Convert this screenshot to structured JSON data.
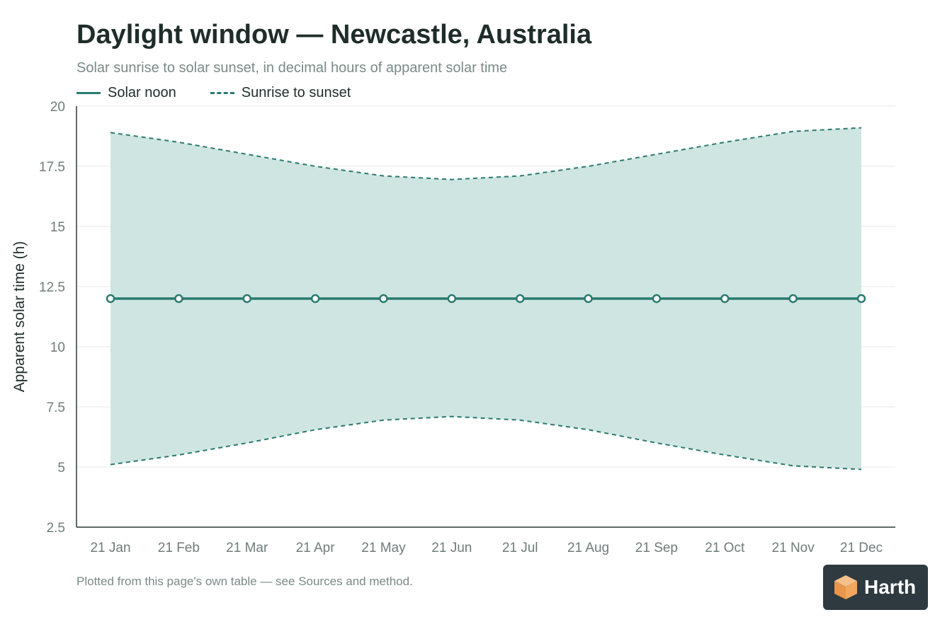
{
  "title": "Daylight window — Newcastle, Australia",
  "subtitle": "Solar sunrise to solar sunset, in decimal hours of apparent solar time",
  "footer": "Plotted from this page's own table — see Sources and method.",
  "logo": {
    "text": "Harth",
    "icon": "cube-icon"
  },
  "colors": {
    "accent": "#2a7a70",
    "band": "#cfe5e1",
    "grid": "#e6ebea",
    "axis": "#2f3a38"
  },
  "chart_data": {
    "type": "line",
    "title": "Daylight window — Newcastle, Australia",
    "subtitle": "Solar sunrise to solar sunset, in decimal hours of apparent solar time",
    "xlabel": "",
    "ylabel": "Apparent solar time (h)",
    "categories": [
      "21 Jan",
      "21 Feb",
      "21 Mar",
      "21 Apr",
      "21 May",
      "21 Jun",
      "21 Jul",
      "21 Aug",
      "21 Sep",
      "21 Oct",
      "21 Nov",
      "21 Dec"
    ],
    "ylim": [
      2.5,
      20
    ],
    "yticks": [
      "2.5",
      "5",
      "7.5",
      "10",
      "12.5",
      "15",
      "17.5",
      "20"
    ],
    "ytick_values": [
      2.5,
      5,
      7.5,
      10,
      12.5,
      15,
      17.5,
      20
    ],
    "grid": true,
    "legend_position": "top-left",
    "series": [
      {
        "name": "Solar noon",
        "style": "solid",
        "values": [
          12,
          12,
          12,
          12,
          12,
          12,
          12,
          12,
          12,
          12,
          12,
          12
        ]
      },
      {
        "name": "Sunrise to sunset",
        "style": "dashed",
        "sunrise": [
          5.1,
          5.5,
          6.0,
          6.55,
          6.95,
          7.1,
          6.95,
          6.55,
          6.0,
          5.5,
          5.05,
          4.9
        ],
        "sunset": [
          18.9,
          18.5,
          18.0,
          17.5,
          17.1,
          16.95,
          17.1,
          17.5,
          18.0,
          18.5,
          18.95,
          19.1
        ]
      }
    ]
  }
}
